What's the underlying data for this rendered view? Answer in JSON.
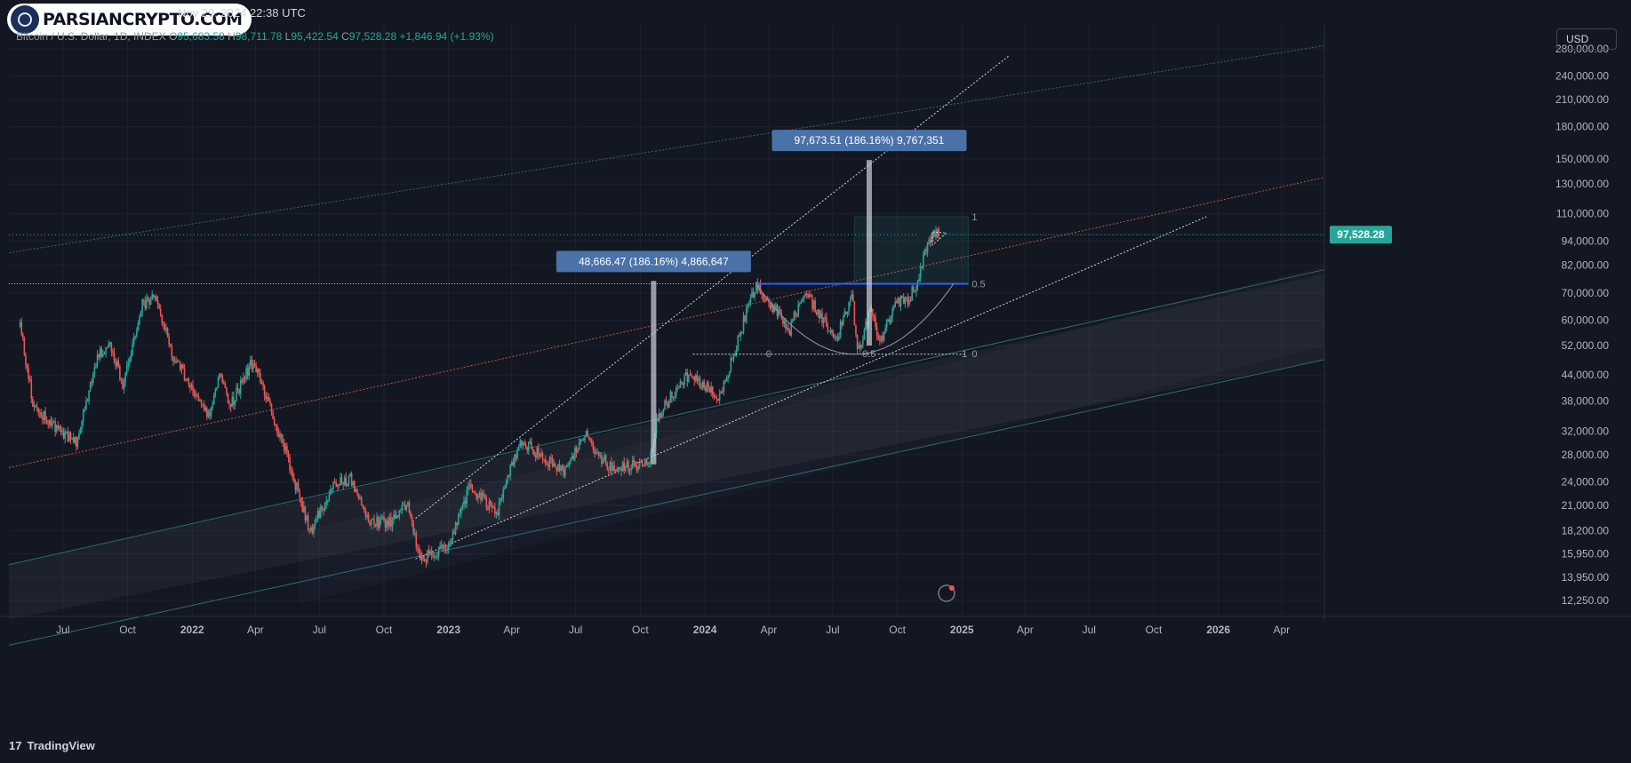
{
  "header": {
    "watermark": "PARSIANCRYPTO.COM",
    "publish_info": "Nov 29, 2024 22:38 UTC",
    "symbol": "Bitcoin / U.S. Dollar, 1D, INDEX",
    "o_label": "O",
    "o_value": "95,683.58",
    "h_label": "H",
    "h_value": "98,711.78",
    "l_label": "L",
    "l_value": "95,422.54",
    "c_label": "C",
    "c_value": "97,528.28",
    "change": "+1,846.94 (+1.93%)"
  },
  "currency_button": "USD",
  "footer": {
    "brand": "TradingView",
    "brand_mark": "17"
  },
  "colors": {
    "background": "#131722",
    "up": "#26a69a",
    "down": "#ef5350",
    "blue_line": "#2962ff",
    "label_bg": "#4a72a8"
  },
  "chart_data": {
    "type": "candlestick",
    "title": "Bitcoin / U.S. Dollar, 1D, INDEX",
    "y_scale": "log",
    "ylim": [
      12000,
      290000
    ],
    "xlim": [
      "2021-04-15",
      "2026-06-01"
    ],
    "y_ticks": [
      {
        "value": 280000,
        "label": "280,000.00"
      },
      {
        "value": 240000,
        "label": "240,000.00"
      },
      {
        "value": 210000,
        "label": "210,000.00"
      },
      {
        "value": 180000,
        "label": "180,000.00"
      },
      {
        "value": 150000,
        "label": "150,000.00"
      },
      {
        "value": 130000,
        "label": "130,000.00"
      },
      {
        "value": 110000,
        "label": "110,000.00"
      },
      {
        "value": 94000,
        "label": "94,000.00"
      },
      {
        "value": 82000,
        "label": "82,000.00"
      },
      {
        "value": 70000,
        "label": "70,000.00"
      },
      {
        "value": 60000,
        "label": "60,000.00"
      },
      {
        "value": 52000,
        "label": "52,000.00"
      },
      {
        "value": 44000,
        "label": "44,000.00"
      },
      {
        "value": 38000,
        "label": "38,000.00"
      },
      {
        "value": 32000,
        "label": "32,000.00"
      },
      {
        "value": 28000,
        "label": "28,000.00"
      },
      {
        "value": 24000,
        "label": "24,000.00"
      },
      {
        "value": 21000,
        "label": "21,000.00"
      },
      {
        "value": 18200,
        "label": "18,200.00"
      },
      {
        "value": 15950,
        "label": "15,950.00"
      },
      {
        "value": 13950,
        "label": "13,950.00"
      },
      {
        "value": 12250,
        "label": "12,250.00"
      }
    ],
    "x_ticks": [
      {
        "date": "2021-07-01",
        "label": "Jul"
      },
      {
        "date": "2021-10-01",
        "label": "Oct"
      },
      {
        "date": "2022-01-01",
        "label": "2022"
      },
      {
        "date": "2022-04-01",
        "label": "Apr"
      },
      {
        "date": "2022-07-01",
        "label": "Jul"
      },
      {
        "date": "2022-10-01",
        "label": "Oct"
      },
      {
        "date": "2023-01-01",
        "label": "2023"
      },
      {
        "date": "2023-04-01",
        "label": "Apr"
      },
      {
        "date": "2023-07-01",
        "label": "Jul"
      },
      {
        "date": "2023-10-01",
        "label": "Oct"
      },
      {
        "date": "2024-01-01",
        "label": "2024"
      },
      {
        "date": "2024-04-01",
        "label": "Apr"
      },
      {
        "date": "2024-07-01",
        "label": "Jul"
      },
      {
        "date": "2024-10-01",
        "label": "Oct"
      },
      {
        "date": "2025-01-01",
        "label": "2025"
      },
      {
        "date": "2025-04-01",
        "label": "Apr"
      },
      {
        "date": "2025-07-01",
        "label": "Jul"
      },
      {
        "date": "2025-10-01",
        "label": "Oct"
      },
      {
        "date": "2026-01-01",
        "label": "2026"
      },
      {
        "date": "2026-04-01",
        "label": "Apr"
      }
    ],
    "price_path": [
      [
        "2021-05-01",
        58000
      ],
      [
        "2021-05-20",
        37000
      ],
      [
        "2021-06-20",
        33000
      ],
      [
        "2021-07-20",
        30000
      ],
      [
        "2021-08-20",
        49000
      ],
      [
        "2021-09-07",
        52000
      ],
      [
        "2021-09-25",
        41000
      ],
      [
        "2021-10-20",
        65000
      ],
      [
        "2021-11-10",
        68800
      ],
      [
        "2021-12-05",
        49000
      ],
      [
        "2022-01-24",
        35000
      ],
      [
        "2022-02-10",
        44000
      ],
      [
        "2022-02-24",
        37000
      ],
      [
        "2022-03-28",
        47500
      ],
      [
        "2022-05-10",
        30000
      ],
      [
        "2022-06-18",
        18000
      ],
      [
        "2022-07-20",
        23500
      ],
      [
        "2022-08-14",
        24500
      ],
      [
        "2022-09-10",
        19000
      ],
      [
        "2022-10-10",
        19100
      ],
      [
        "2022-11-05",
        21300
      ],
      [
        "2022-11-21",
        15500
      ],
      [
        "2022-12-31",
        16500
      ],
      [
        "2023-02-01",
        23500
      ],
      [
        "2023-03-10",
        20000
      ],
      [
        "2023-04-14",
        30500
      ],
      [
        "2023-06-15",
        25000
      ],
      [
        "2023-07-13",
        31500
      ],
      [
        "2023-08-18",
        26000
      ],
      [
        "2023-10-15",
        26800
      ],
      [
        "2023-10-24",
        34500
      ],
      [
        "2023-12-05",
        44000
      ],
      [
        "2024-01-23",
        39000
      ],
      [
        "2024-02-28",
        62000
      ],
      [
        "2024-03-14",
        73800
      ],
      [
        "2024-05-01",
        57000
      ],
      [
        "2024-05-21",
        71000
      ],
      [
        "2024-07-05",
        54000
      ],
      [
        "2024-07-29",
        69000
      ],
      [
        "2024-08-05",
        49500
      ],
      [
        "2024-08-25",
        64500
      ],
      [
        "2024-09-06",
        53000
      ],
      [
        "2024-09-27",
        66000
      ],
      [
        "2024-10-15",
        67500
      ],
      [
        "2024-10-29",
        73000
      ],
      [
        "2024-11-13",
        93000
      ],
      [
        "2024-11-22",
        99500
      ],
      [
        "2024-11-29",
        97528.28
      ]
    ],
    "last_price": {
      "value": 97528.28,
      "label": "97,528.28"
    },
    "annotations": {
      "measure_2023": {
        "text": "48,666.47 (186.16%) 4,866,647"
      },
      "measure_2024": {
        "text": "97,673.51 (186.16%) 9,767,351"
      },
      "fib_high": "1",
      "fib_mid": "0.5",
      "fib_low_left": "0",
      "fib_low_mid": "0.5",
      "fib_low_right": "1",
      "fib_low_end": "0",
      "level_mid": 73800,
      "level_low": 49500,
      "level_high": 108000
    }
  }
}
